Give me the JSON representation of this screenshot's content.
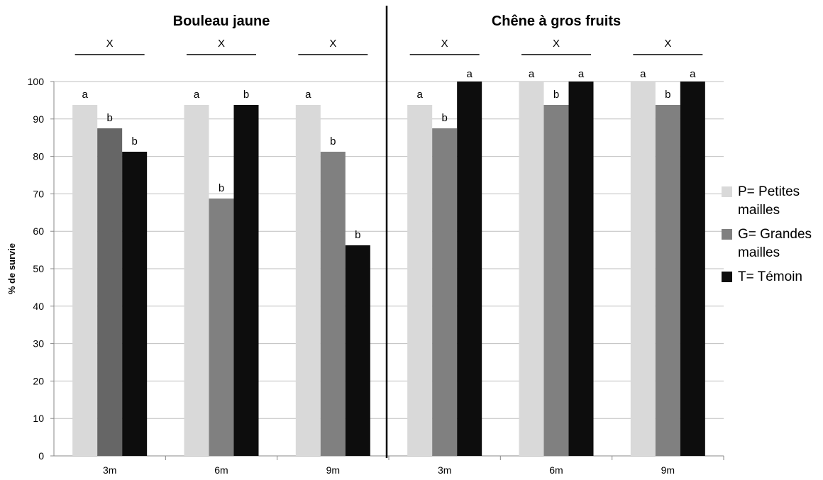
{
  "chart_data": {
    "type": "bar",
    "ylabel": "% de survie",
    "ylim": [
      0,
      100
    ],
    "yticks": [
      0,
      10,
      20,
      30,
      40,
      50,
      60,
      70,
      80,
      90,
      100
    ],
    "grid": true,
    "legend_position": "right",
    "series_colors": [
      "#d9d9d9",
      "#808080",
      "#0d0d0d"
    ],
    "series": [
      {
        "name": "P= Petites mailles"
      },
      {
        "name": "G= Grandes mailles"
      },
      {
        "name": "T= Témoin"
      }
    ],
    "panels": [
      {
        "title": "Bouleau jaune",
        "categories": [
          "3m",
          "6m",
          "9m"
        ],
        "group_labels": [
          "X",
          "X",
          "X"
        ],
        "values": [
          [
            93.75,
            87.5,
            81.25
          ],
          [
            93.75,
            68.75,
            93.75
          ],
          [
            93.75,
            81.25,
            56.25
          ]
        ],
        "letters": [
          [
            "a",
            "b",
            "b"
          ],
          [
            "a",
            "b",
            "b"
          ],
          [
            "a",
            "b",
            "b"
          ]
        ]
      },
      {
        "title": "Chêne à gros fruits",
        "categories": [
          "3m",
          "6m",
          "9m"
        ],
        "group_labels": [
          "X",
          "X",
          "X"
        ],
        "values": [
          [
            93.75,
            87.5,
            100
          ],
          [
            100,
            93.75,
            100
          ],
          [
            100,
            93.75,
            100
          ]
        ],
        "letters": [
          [
            "a",
            "b",
            "a"
          ],
          [
            "a",
            "b",
            "a"
          ],
          [
            "a",
            "b",
            "a"
          ]
        ]
      }
    ]
  },
  "legend": {
    "items": [
      {
        "label": "P= Petites mailles"
      },
      {
        "label": "G= Grandes mailles"
      },
      {
        "label": "T= Témoin"
      }
    ]
  }
}
